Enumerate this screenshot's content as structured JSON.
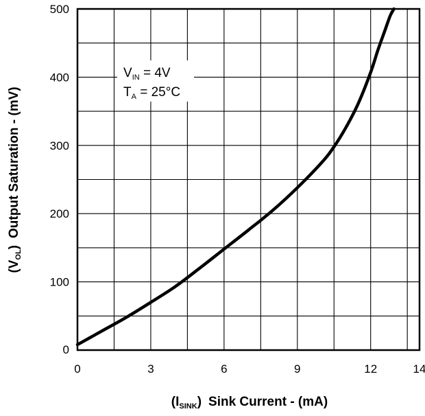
{
  "chart_data": {
    "type": "line",
    "x_axis": {
      "label_paren": "(I",
      "label_sub": "SINK",
      "label_close": ")",
      "label_text": "Sink Current - (mA)",
      "ticks": [
        0,
        3,
        6,
        9,
        12,
        14
      ],
      "range": [
        0,
        14
      ],
      "grid_step": 1.5
    },
    "y_axis": {
      "label_paren": "(V",
      "label_sub": "OL",
      "label_close": ")",
      "label_text": "Output Saturation - (mV)",
      "ticks": [
        0,
        100,
        200,
        300,
        400,
        500
      ],
      "range": [
        0,
        500
      ],
      "grid_step": 50
    },
    "annotation": {
      "line1_main": "V",
      "line1_sub": "IN",
      "line1_rest": " = 4V",
      "line2_main": "T",
      "line2_sub": "A",
      "line2_rest": " = 25°C"
    },
    "grid": true,
    "series": [
      {
        "x": [
          0,
          1,
          2,
          3,
          4,
          5,
          6,
          7,
          8,
          9,
          10,
          10.5,
          11,
          11.5,
          12,
          12.3,
          12.6,
          12.8,
          12.95
        ],
        "y": [
          8,
          28,
          48,
          70,
          93,
          120,
          148,
          176,
          205,
          238,
          275,
          298,
          327,
          362,
          407,
          440,
          470,
          490,
          500
        ],
        "color": "#000000"
      }
    ]
  }
}
